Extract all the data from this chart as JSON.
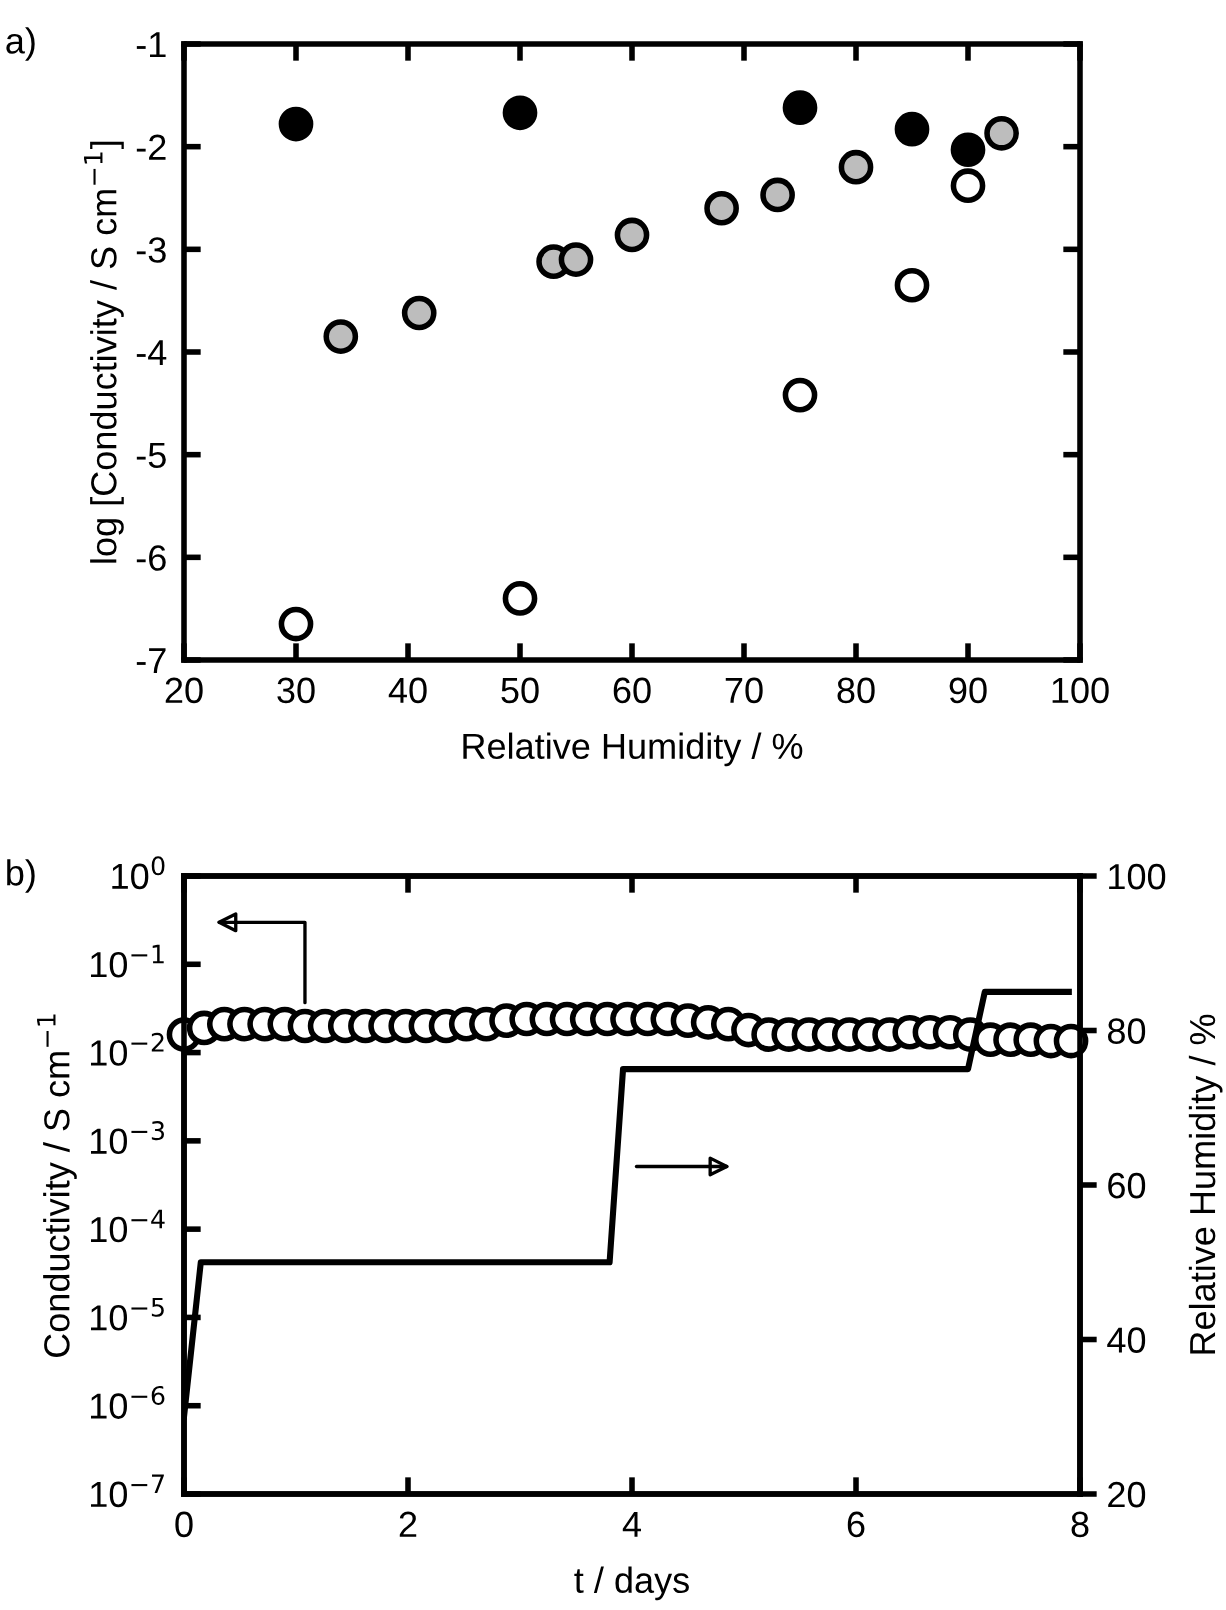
{
  "chart_data": [
    {
      "type": "scatter",
      "title": "a)",
      "xlabel": "Relative Humidity / %",
      "ylabel": "log [Conductivity / S cm$^{−1}$]",
      "xlim": [
        20,
        100
      ],
      "xticks": [
        20,
        30,
        40,
        50,
        60,
        70,
        80,
        90,
        100
      ],
      "ylim": [
        -7,
        -1
      ],
      "yticks": [
        -7,
        -6,
        -5,
        -4,
        -3,
        -2,
        -1
      ],
      "marker": "circle",
      "grid": false,
      "series": [
        {
          "color": "#000000",
          "x": [
            30,
            50,
            75,
            85,
            90
          ],
          "values": [
            -1.78,
            -1.67,
            -1.62,
            -1.83,
            -2.03
          ]
        },
        {
          "color": "#bdbdbd",
          "x": [
            34,
            41,
            53,
            55,
            60,
            68,
            73,
            80,
            93
          ],
          "values": [
            -3.85,
            -3.62,
            -3.12,
            -3.1,
            -2.86,
            -2.6,
            -2.47,
            -2.2,
            -1.87
          ]
        },
        {
          "color": "#ffffff",
          "x": [
            30,
            50,
            75,
            85,
            90
          ],
          "values": [
            -6.65,
            -6.4,
            -4.42,
            -3.35,
            -2.38
          ]
        }
      ]
    },
    {
      "type": "scatter",
      "title": "b)",
      "xlabel": "t / days",
      "ylabel": "Conductivity / S cm$^{−1}$",
      "y2label": "Relative Humidity / %",
      "log": "y",
      "xlim": [
        0,
        8
      ],
      "xticks": [
        0,
        2,
        4,
        6,
        8
      ],
      "ylim": [
        1e-07,
        1
      ],
      "yticks": [
        {
          "value": 1e-07,
          "label": "10$^{−7}$"
        },
        {
          "value": 1e-06,
          "label": "10$^{−6}$"
        },
        {
          "value": 1e-05,
          "label": "10$^{−5}$"
        },
        {
          "value": 0.0001,
          "label": "10$^{−4}$"
        },
        {
          "value": 0.001,
          "label": "10$^{−3}$"
        },
        {
          "value": 0.01,
          "label": "10$^{−2}$"
        },
        {
          "value": 0.1,
          "label": "10$^{−1}$"
        },
        {
          "value": 1,
          "label": "10$^{0}$"
        }
      ],
      "y2lim": [
        20,
        100
      ],
      "y2ticks": [
        20,
        40,
        60,
        80,
        100
      ],
      "grid": false,
      "series": [
        {
          "type": "scatter",
          "marker": "circle",
          "color": "#ffffff",
          "x": [
            0,
            0.18,
            0.36,
            0.54,
            0.72,
            0.9,
            1.08,
            1.26,
            1.44,
            1.62,
            1.8,
            1.98,
            2.16,
            2.34,
            2.52,
            2.7,
            2.88,
            3.06,
            3.24,
            3.42,
            3.6,
            3.78,
            3.96,
            4.14,
            4.32,
            4.5,
            4.68,
            4.86,
            5.04,
            5.22,
            5.4,
            5.58,
            5.76,
            5.94,
            6.12,
            6.3,
            6.48,
            6.66,
            6.84,
            7.02,
            7.2,
            7.38,
            7.56,
            7.74,
            7.92
          ],
          "values": [
            0.016,
            0.019,
            0.021,
            0.021,
            0.021,
            0.021,
            0.02,
            0.02,
            0.02,
            0.02,
            0.02,
            0.02,
            0.02,
            0.02,
            0.021,
            0.021,
            0.023,
            0.024,
            0.024,
            0.024,
            0.024,
            0.024,
            0.024,
            0.024,
            0.024,
            0.023,
            0.022,
            0.021,
            0.018,
            0.016,
            0.016,
            0.016,
            0.016,
            0.016,
            0.016,
            0.016,
            0.017,
            0.017,
            0.017,
            0.016,
            0.014,
            0.014,
            0.014,
            0.0135,
            0.0135
          ]
        },
        {
          "type": "line",
          "axis": "y2",
          "marker": "none",
          "line_style": "solid",
          "color": "#000000",
          "x": [
            0,
            0.15,
            3.8,
            3.92,
            7.0,
            7.15,
            7.9
          ],
          "values": [
            30,
            50,
            50,
            75,
            75,
            85,
            85
          ]
        }
      ]
    }
  ]
}
